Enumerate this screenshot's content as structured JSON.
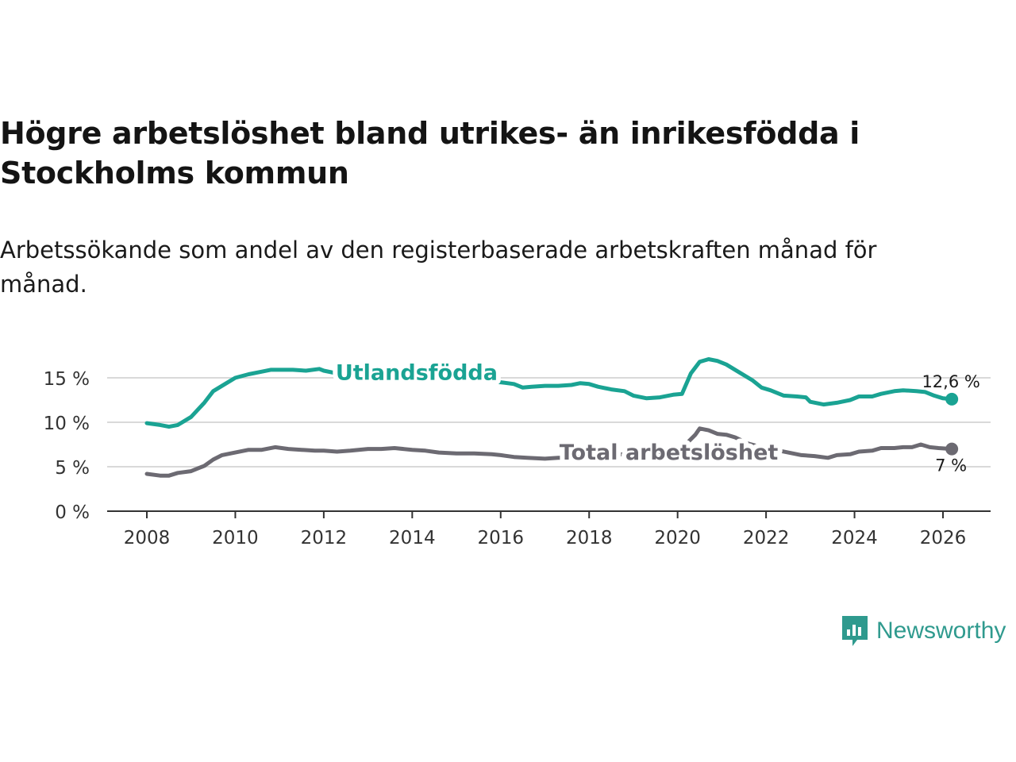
{
  "title": "Högre arbetslöshet bland utrikes- än inrikesfödda i Stockholms kommun",
  "subtitle": "Arbetssökande som andel av den registerbaserade arbetskraften månad för månad.",
  "brand": {
    "name": "Newsworthy",
    "color": "#2f9a8e"
  },
  "chart_data": {
    "type": "line",
    "title": "Högre arbetslöshet bland utrikes- än inrikesfödda i Stockholms kommun",
    "subtitle": "Arbetssökande som andel av den registerbaserade arbetskraften månad för månad.",
    "xlabel": "",
    "ylabel": "",
    "xlim": [
      2007.1,
      2027.2
    ],
    "ylim": [
      0,
      16.5
    ],
    "grid": true,
    "x_ticks": [
      2008,
      2010,
      2012,
      2014,
      2016,
      2018,
      2020,
      2022,
      2024,
      2026
    ],
    "x_tick_labels": [
      "2008",
      "2010",
      "2012",
      "2014",
      "2016",
      "2018",
      "2020",
      "2022",
      "2024",
      "2026"
    ],
    "y_ticks": [
      0,
      5,
      10,
      15
    ],
    "y_tick_labels": [
      "0 %",
      "5 %",
      "10 %",
      "15 %"
    ],
    "series": [
      {
        "name": "Utlandsfödda",
        "color": "#1aa393",
        "end_label": "12,6 %",
        "points": [
          [
            2008.0,
            9.9
          ],
          [
            2008.3,
            9.7
          ],
          [
            2008.5,
            9.5
          ],
          [
            2008.7,
            9.7
          ],
          [
            2009.0,
            10.6
          ],
          [
            2009.3,
            12.2
          ],
          [
            2009.5,
            13.5
          ],
          [
            2009.8,
            14.4
          ],
          [
            2010.0,
            15.0
          ],
          [
            2010.3,
            15.4
          ],
          [
            2010.6,
            15.7
          ],
          [
            2010.8,
            15.9
          ],
          [
            2011.0,
            15.9
          ],
          [
            2011.3,
            15.9
          ],
          [
            2011.6,
            15.8
          ],
          [
            2011.9,
            16.0
          ],
          [
            2012.0,
            15.8
          ],
          [
            2012.3,
            15.5
          ],
          [
            2012.6,
            15.3
          ],
          [
            2013.0,
            15.1
          ],
          [
            2013.5,
            15.0
          ],
          [
            2014.0,
            14.9
          ],
          [
            2014.5,
            14.8
          ],
          [
            2015.0,
            14.7
          ],
          [
            2015.5,
            14.6
          ],
          [
            2016.0,
            14.5
          ],
          [
            2016.3,
            14.3
          ],
          [
            2016.5,
            13.9
          ],
          [
            2016.7,
            14.0
          ],
          [
            2017.0,
            14.1
          ],
          [
            2017.3,
            14.1
          ],
          [
            2017.6,
            14.2
          ],
          [
            2017.8,
            14.4
          ],
          [
            2018.0,
            14.3
          ],
          [
            2018.2,
            14.0
          ],
          [
            2018.5,
            13.7
          ],
          [
            2018.8,
            13.5
          ],
          [
            2019.0,
            13.0
          ],
          [
            2019.3,
            12.7
          ],
          [
            2019.6,
            12.8
          ],
          [
            2019.9,
            13.1
          ],
          [
            2020.1,
            13.2
          ],
          [
            2020.3,
            15.5
          ],
          [
            2020.5,
            16.8
          ],
          [
            2020.7,
            17.1
          ],
          [
            2020.9,
            16.9
          ],
          [
            2021.1,
            16.5
          ],
          [
            2021.4,
            15.6
          ],
          [
            2021.7,
            14.7
          ],
          [
            2021.9,
            13.9
          ],
          [
            2022.1,
            13.6
          ],
          [
            2022.4,
            13.0
          ],
          [
            2022.7,
            12.9
          ],
          [
            2022.9,
            12.8
          ],
          [
            2023.0,
            12.3
          ],
          [
            2023.3,
            12.0
          ],
          [
            2023.6,
            12.2
          ],
          [
            2023.9,
            12.5
          ],
          [
            2024.1,
            12.9
          ],
          [
            2024.4,
            12.9
          ],
          [
            2024.6,
            13.2
          ],
          [
            2024.9,
            13.5
          ],
          [
            2025.1,
            13.6
          ],
          [
            2025.4,
            13.5
          ],
          [
            2025.6,
            13.4
          ],
          [
            2025.8,
            13.0
          ],
          [
            2026.0,
            12.7
          ],
          [
            2026.2,
            12.6
          ]
        ]
      },
      {
        "name": "Total arbetslöshet",
        "color": "#6c6a72",
        "end_label": "7 %",
        "points": [
          [
            2008.0,
            4.2
          ],
          [
            2008.3,
            4.0
          ],
          [
            2008.5,
            4.0
          ],
          [
            2008.7,
            4.3
          ],
          [
            2009.0,
            4.5
          ],
          [
            2009.3,
            5.1
          ],
          [
            2009.5,
            5.8
          ],
          [
            2009.7,
            6.3
          ],
          [
            2010.0,
            6.6
          ],
          [
            2010.3,
            6.9
          ],
          [
            2010.6,
            6.9
          ],
          [
            2010.9,
            7.2
          ],
          [
            2011.2,
            7.0
          ],
          [
            2011.5,
            6.9
          ],
          [
            2011.8,
            6.8
          ],
          [
            2012.0,
            6.8
          ],
          [
            2012.3,
            6.7
          ],
          [
            2012.6,
            6.8
          ],
          [
            2013.0,
            7.0
          ],
          [
            2013.3,
            7.0
          ],
          [
            2013.6,
            7.1
          ],
          [
            2014.0,
            6.9
          ],
          [
            2014.3,
            6.8
          ],
          [
            2014.6,
            6.6
          ],
          [
            2015.0,
            6.5
          ],
          [
            2015.4,
            6.5
          ],
          [
            2015.8,
            6.4
          ],
          [
            2016.0,
            6.3
          ],
          [
            2016.3,
            6.1
          ],
          [
            2016.6,
            6.0
          ],
          [
            2017.0,
            5.9
          ],
          [
            2017.3,
            6.0
          ],
          [
            2017.6,
            6.0
          ],
          [
            2018.0,
            6.2
          ],
          [
            2018.4,
            6.3
          ],
          [
            2018.8,
            6.4
          ],
          [
            2019.2,
            6.5
          ],
          [
            2019.6,
            6.7
          ],
          [
            2020.0,
            6.9
          ],
          [
            2020.2,
            7.6
          ],
          [
            2020.4,
            8.6
          ],
          [
            2020.5,
            9.3
          ],
          [
            2020.7,
            9.1
          ],
          [
            2020.9,
            8.7
          ],
          [
            2021.1,
            8.6
          ],
          [
            2021.3,
            8.3
          ],
          [
            2021.6,
            7.6
          ],
          [
            2021.9,
            7.2
          ],
          [
            2022.2,
            6.9
          ],
          [
            2022.5,
            6.6
          ],
          [
            2022.8,
            6.3
          ],
          [
            2023.1,
            6.2
          ],
          [
            2023.4,
            6.0
          ],
          [
            2023.6,
            6.3
          ],
          [
            2023.9,
            6.4
          ],
          [
            2024.1,
            6.7
          ],
          [
            2024.4,
            6.8
          ],
          [
            2024.6,
            7.1
          ],
          [
            2024.9,
            7.1
          ],
          [
            2025.1,
            7.2
          ],
          [
            2025.3,
            7.2
          ],
          [
            2025.5,
            7.5
          ],
          [
            2025.7,
            7.2
          ],
          [
            2025.9,
            7.1
          ],
          [
            2026.2,
            7.0
          ]
        ]
      }
    ],
    "annotations": [
      {
        "text": "Utlandsfödda",
        "series": "Utlandsfödda",
        "x": 2014.1,
        "y": 15.6
      },
      {
        "text": "Total arbetslöshet",
        "series": "Total arbetslöshet",
        "x": 2019.8,
        "y": 6.6
      }
    ]
  }
}
